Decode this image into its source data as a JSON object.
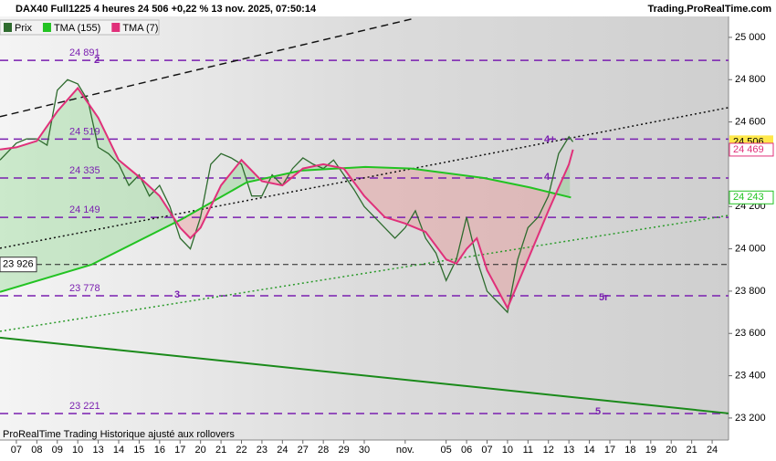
{
  "chart_data": {
    "type": "line",
    "title": "DAX40 Full1225 4 heures 24 506 +0,22 % 13 nov. 2025, 07:50:14",
    "brand": "Trading.ProRealTime.com",
    "footer": "ProRealTime Trading  Historique ajusté aux rollovers",
    "xlim": [
      -0.8,
      34.8
    ],
    "ylim": [
      23096,
      25099
    ],
    "xticks": [
      {
        "value": 0,
        "label": "07"
      },
      {
        "value": 1,
        "label": "08"
      },
      {
        "value": 2,
        "label": "09"
      },
      {
        "value": 3,
        "label": "10"
      },
      {
        "value": 4,
        "label": "13"
      },
      {
        "value": 5,
        "label": "14"
      },
      {
        "value": 6,
        "label": "15"
      },
      {
        "value": 7,
        "label": "16"
      },
      {
        "value": 8,
        "label": "17"
      },
      {
        "value": 9,
        "label": "20"
      },
      {
        "value": 10,
        "label": "21"
      },
      {
        "value": 11,
        "label": "22"
      },
      {
        "value": 12,
        "label": "23"
      },
      {
        "value": 13,
        "label": "24"
      },
      {
        "value": 14,
        "label": "27"
      },
      {
        "value": 15,
        "label": "28"
      },
      {
        "value": 16,
        "label": "29"
      },
      {
        "value": 17,
        "label": "30"
      },
      {
        "value": 19,
        "label": "nov."
      },
      {
        "value": 21,
        "label": "05"
      },
      {
        "value": 22,
        "label": "06"
      },
      {
        "value": 23,
        "label": "07"
      },
      {
        "value": 24,
        "label": "10"
      },
      {
        "value": 25,
        "label": "11"
      },
      {
        "value": 26,
        "label": "12"
      },
      {
        "value": 27,
        "label": "13"
      },
      {
        "value": 28,
        "label": "14"
      },
      {
        "value": 29,
        "label": "17"
      },
      {
        "value": 30,
        "label": "18"
      },
      {
        "value": 31,
        "label": "19"
      },
      {
        "value": 32,
        "label": "20"
      },
      {
        "value": 33,
        "label": "21"
      },
      {
        "value": 34,
        "label": "24"
      }
    ],
    "yticks": [
      {
        "value": 23200,
        "label": "23 200"
      },
      {
        "value": 23400,
        "label": "23 400"
      },
      {
        "value": 23600,
        "label": "23 600"
      },
      {
        "value": 23800,
        "label": "23 800"
      },
      {
        "value": 24000,
        "label": "24 000"
      },
      {
        "value": 24200,
        "label": "24 200"
      },
      {
        "value": 24600,
        "label": "24 600"
      },
      {
        "value": 24800,
        "label": "24 800"
      },
      {
        "value": 25000,
        "label": "25 000"
      }
    ],
    "series": [
      {
        "name": "Prix",
        "color": "#2e6b2e",
        "last_label": "24 506",
        "x": [
          -0.8,
          0,
          0.5,
          1,
          1.5,
          2,
          2.5,
          3,
          3.5,
          4,
          4.5,
          5,
          5.5,
          6,
          6.5,
          7,
          7.5,
          8,
          8.5,
          9,
          9.5,
          10,
          10.5,
          11,
          11.5,
          12,
          12.5,
          13,
          13.5,
          14,
          14.5,
          15,
          15.5,
          16,
          16.5,
          17,
          17.5,
          18,
          18.5,
          19,
          19.5,
          20,
          20.5,
          21,
          21.5,
          22,
          22.5,
          23,
          23.5,
          24,
          24.5,
          25,
          25.5,
          26,
          26.5,
          27,
          27.2
        ],
        "values": [
          24420,
          24500,
          24520,
          24520,
          24490,
          24750,
          24800,
          24780,
          24700,
          24480,
          24450,
          24400,
          24300,
          24350,
          24250,
          24300,
          24200,
          24050,
          24000,
          24150,
          24400,
          24450,
          24430,
          24400,
          24250,
          24250,
          24350,
          24300,
          24380,
          24430,
          24400,
          24380,
          24420,
          24350,
          24280,
          24200,
          24150,
          24100,
          24050,
          24100,
          24180,
          24050,
          23980,
          23850,
          23950,
          24150,
          23950,
          23800,
          23750,
          23700,
          23950,
          24100,
          24150,
          24250,
          24450,
          24530,
          24506
        ]
      },
      {
        "name": "TMA (155)",
        "color": "#22c322",
        "last_label": "24 243",
        "x": [
          -0.8,
          3.66,
          8.1,
          11.25,
          13.9,
          17.05,
          19.3,
          22.85,
          25.1,
          27.1
        ],
        "values": [
          23796,
          23925,
          24141,
          24314,
          24370,
          24387,
          24380,
          24335,
          24290,
          24243
        ]
      },
      {
        "name": "TMA (7)",
        "color": "#e0307a",
        "last_label": "24 469",
        "x": [
          -0.8,
          0,
          1,
          2,
          3,
          4,
          5,
          6,
          7,
          8,
          8.5,
          9,
          10,
          11,
          12,
          13,
          14,
          15,
          16,
          17,
          18,
          19,
          20,
          21,
          21.5,
          22,
          22.5,
          23,
          24,
          25,
          26,
          27,
          27.2
        ],
        "values": [
          24470,
          24480,
          24510,
          24650,
          24760,
          24620,
          24420,
          24340,
          24250,
          24100,
          24050,
          24100,
          24300,
          24420,
          24320,
          24300,
          24380,
          24400,
          24380,
          24250,
          24150,
          24120,
          24080,
          23950,
          23930,
          24000,
          24050,
          23900,
          23720,
          23950,
          24180,
          24400,
          24469
        ]
      }
    ],
    "levels": [
      {
        "value": 24891,
        "label": "24 891"
      },
      {
        "value": 24519,
        "label": "24 519"
      },
      {
        "value": 24335,
        "label": "24 335"
      },
      {
        "value": 24149,
        "label": "24 149"
      },
      {
        "value": 23778,
        "label": "23 778"
      },
      {
        "value": 23221,
        "label": "23 221"
      }
    ],
    "pivot": {
      "value": 23926,
      "label": "23 926"
    },
    "trendlines": [
      {
        "x": [
          -0.8,
          19.5
        ],
        "y": [
          24625,
          25091
        ],
        "color": "#111111",
        "style": "dashed"
      },
      {
        "x": [
          -0.8,
          34.8
        ],
        "y": [
          24003,
          24668
        ],
        "color": "#111111",
        "style": "dotted"
      },
      {
        "x": [
          -0.8,
          34.8
        ],
        "y": [
          23610,
          24158
        ],
        "color": "#2a9a2a",
        "style": "dotted"
      },
      {
        "x": [
          -0.8,
          34.8
        ],
        "y": [
          23580,
          23222
        ],
        "color": "#1a8a1a",
        "style": "solid"
      }
    ],
    "annotations": [
      "2",
      "3",
      "4+",
      "4",
      "5r",
      "5"
    ]
  }
}
